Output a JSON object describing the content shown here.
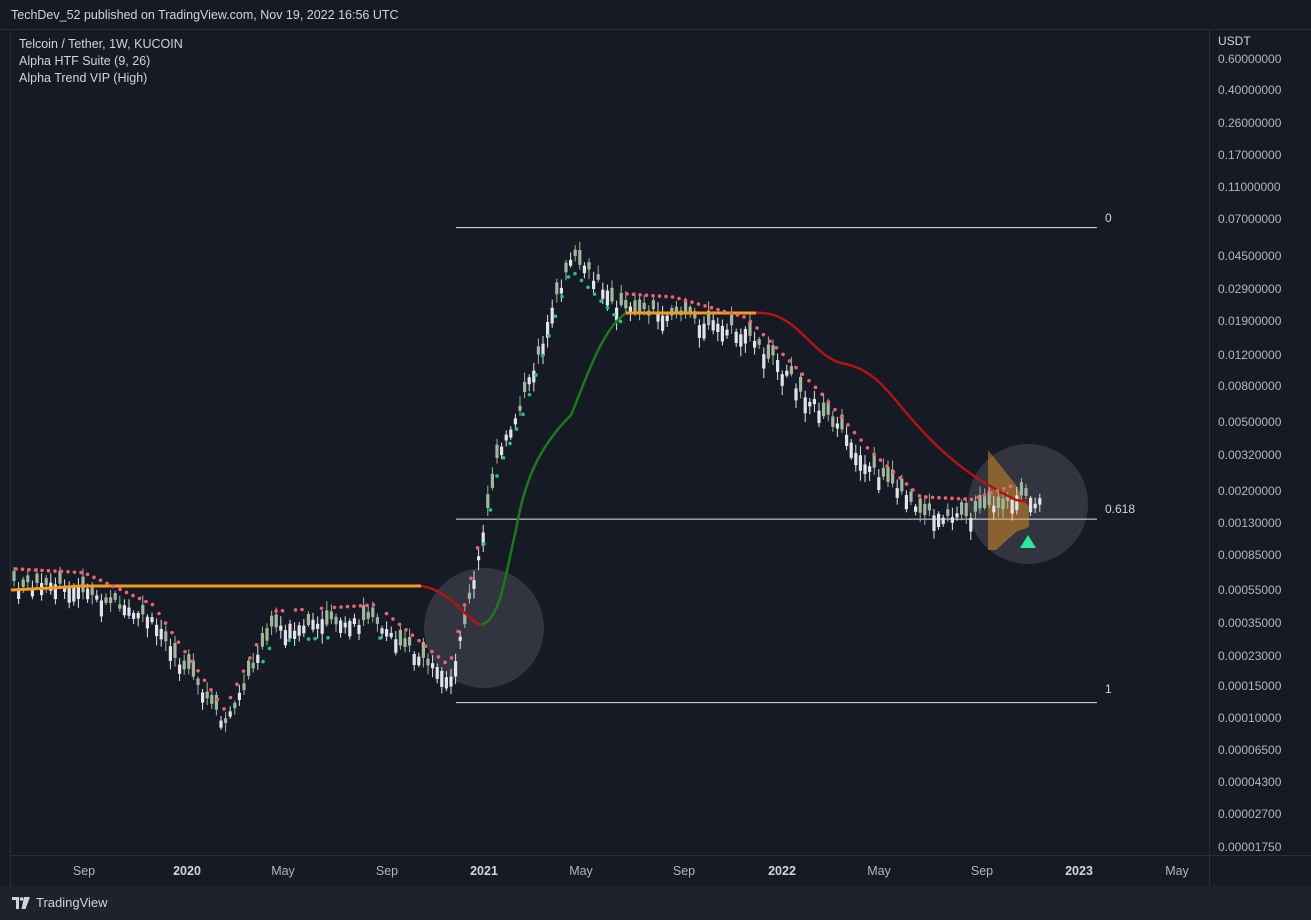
{
  "header": {
    "published_text": "TechDev_52 published on TradingView.com, Nov 19, 2022 16:56 UTC"
  },
  "legend": {
    "symbol": "Telcoin / Tether, 1W, KUCOIN",
    "indicator_1": "Alpha HTF Suite (9, 26)",
    "indicator_2": "Alpha Trend VIP (High)"
  },
  "price_axis": {
    "unit": "USDT",
    "labels": [
      "0.60000000",
      "0.40000000",
      "0.26000000",
      "0.17000000",
      "0.11000000",
      "0.07000000",
      "0.04500000",
      "0.02900000",
      "0.01900000",
      "0.01200000",
      "0.00800000",
      "0.00500000",
      "0.00320000",
      "0.00200000",
      "0.00130000",
      "0.00085000",
      "0.00055000",
      "0.00035000",
      "0.00023000",
      "0.00015000",
      "0.00010000",
      "0.00006500",
      "0.00004300",
      "0.00002700",
      "0.00001750"
    ]
  },
  "time_axis": {
    "labels": [
      {
        "text": "Sep",
        "bold": false
      },
      {
        "text": "2020",
        "bold": true
      },
      {
        "text": "May",
        "bold": false
      },
      {
        "text": "Sep",
        "bold": false
      },
      {
        "text": "2021",
        "bold": true
      },
      {
        "text": "May",
        "bold": false
      },
      {
        "text": "Sep",
        "bold": false
      },
      {
        "text": "2022",
        "bold": true
      },
      {
        "text": "May",
        "bold": false
      },
      {
        "text": "Sep",
        "bold": false
      },
      {
        "text": "2023",
        "bold": true
      },
      {
        "text": "May",
        "bold": false
      }
    ]
  },
  "fib_levels": {
    "level_0": "0",
    "level_618": "0.618",
    "level_1": "1"
  },
  "footer": {
    "brand": "TradingView"
  },
  "colors": {
    "background": "#161a25",
    "candle_up": "#9fb89c",
    "candle_down": "#e0e3eb",
    "trend_green": "#1b7a1b",
    "trend_red": "#b01414",
    "trend_orange": "#f59a1f",
    "dot_red": "#f0616d",
    "dot_green": "#26c281",
    "signal_arrow": "#2ee89a"
  },
  "chart_data": {
    "type": "candlestick",
    "symbol": "Telcoin / Tether, 1W, KUCOIN",
    "y_scale": "log",
    "fib_retracement": [
      {
        "level": "0",
        "price": 0.065
      },
      {
        "level": "0.618",
        "price": 0.00138
      },
      {
        "level": "1",
        "price": 0.000122
      }
    ],
    "approx_close_path": [
      {
        "x": "2019-07",
        "y": 0.00058
      },
      {
        "x": "2019-09",
        "y": 0.00055
      },
      {
        "x": "2019-12",
        "y": 0.00036
      },
      {
        "x": "2020-03",
        "y": 9e-05
      },
      {
        "x": "2020-05",
        "y": 0.00033
      },
      {
        "x": "2020-09",
        "y": 0.00036
      },
      {
        "x": "2020-12",
        "y": 0.00016
      },
      {
        "x": "2021-01",
        "y": 0.0006
      },
      {
        "x": "2021-02",
        "y": 0.0032
      },
      {
        "x": "2021-03",
        "y": 0.0065
      },
      {
        "x": "2021-05",
        "y": 0.045
      },
      {
        "x": "2021-07",
        "y": 0.022
      },
      {
        "x": "2021-09",
        "y": 0.021
      },
      {
        "x": "2021-12",
        "y": 0.016
      },
      {
        "x": "2022-03",
        "y": 0.006
      },
      {
        "x": "2022-05",
        "y": 0.0028
      },
      {
        "x": "2022-07",
        "y": 0.0015
      },
      {
        "x": "2022-09",
        "y": 0.00145
      },
      {
        "x": "2022-11",
        "y": 0.0018
      }
    ]
  }
}
